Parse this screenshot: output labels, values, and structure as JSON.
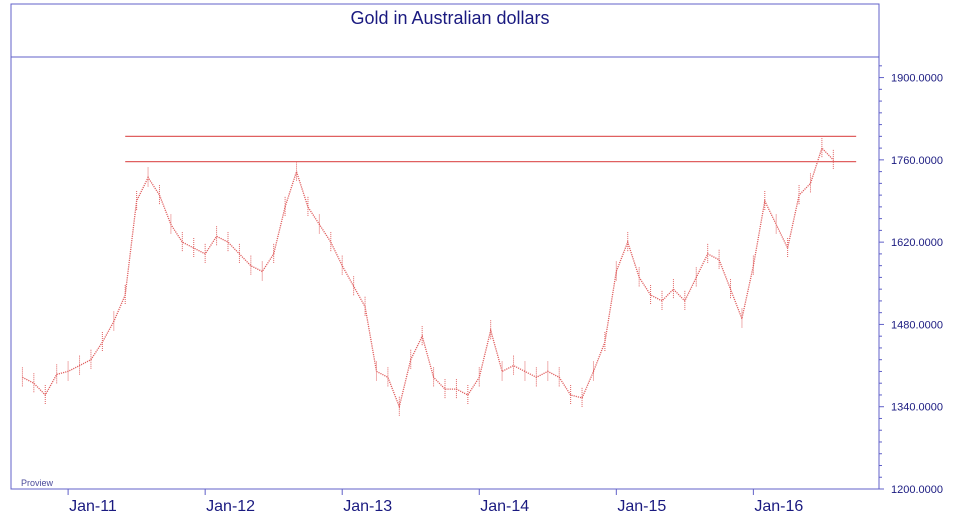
{
  "chart_data": {
    "type": "line",
    "title": "Gold in Australian dollars",
    "watermark": "Proview",
    "x_ticks": [
      "Jan-11",
      "Jan-12",
      "Jan-13",
      "Jan-14",
      "Jan-15",
      "Jan-16"
    ],
    "y_ticks": [
      "1900.0000",
      "1760.0000",
      "1620.0000",
      "1480.0000",
      "1340.0000",
      "1200.0000"
    ],
    "y_tick_values": [
      1900,
      1760,
      1620,
      1480,
      1340,
      1200
    ],
    "ylim": [
      1200,
      1935
    ],
    "xlim": [
      "2010-08",
      "2016-12"
    ],
    "grid": false,
    "resistance_lines": [
      1800,
      1757
    ],
    "series": [
      {
        "color": "#e06060",
        "x": [
          "2010-09",
          "2010-10",
          "2010-11",
          "2010-12",
          "2011-01",
          "2011-02",
          "2011-03",
          "2011-04",
          "2011-05",
          "2011-06",
          "2011-07",
          "2011-08",
          "2011-09",
          "2011-10",
          "2011-11",
          "2011-12",
          "2012-01",
          "2012-02",
          "2012-03",
          "2012-04",
          "2012-05",
          "2012-06",
          "2012-07",
          "2012-08",
          "2012-09",
          "2012-10",
          "2012-11",
          "2012-12",
          "2013-01",
          "2013-02",
          "2013-03",
          "2013-04",
          "2013-05",
          "2013-06",
          "2013-07",
          "2013-08",
          "2013-09",
          "2013-10",
          "2013-11",
          "2013-12",
          "2014-01",
          "2014-02",
          "2014-03",
          "2014-04",
          "2014-05",
          "2014-06",
          "2014-07",
          "2014-08",
          "2014-09",
          "2014-10",
          "2014-11",
          "2014-12",
          "2015-01",
          "2015-02",
          "2015-03",
          "2015-04",
          "2015-05",
          "2015-06",
          "2015-07",
          "2015-08",
          "2015-09",
          "2015-10",
          "2015-11",
          "2015-12",
          "2016-01",
          "2016-02",
          "2016-03",
          "2016-04",
          "2016-05",
          "2016-06",
          "2016-07",
          "2016-08"
        ],
        "values": [
          1390,
          1380,
          1360,
          1395,
          1400,
          1410,
          1420,
          1450,
          1485,
          1530,
          1690,
          1730,
          1700,
          1650,
          1620,
          1610,
          1600,
          1630,
          1620,
          1600,
          1580,
          1570,
          1600,
          1680,
          1740,
          1680,
          1650,
          1620,
          1580,
          1545,
          1510,
          1400,
          1390,
          1340,
          1420,
          1460,
          1390,
          1370,
          1370,
          1360,
          1390,
          1470,
          1400,
          1410,
          1400,
          1390,
          1400,
          1390,
          1360,
          1355,
          1400,
          1450,
          1570,
          1620,
          1560,
          1530,
          1520,
          1540,
          1520,
          1560,
          1600,
          1590,
          1540,
          1490,
          1580,
          1690,
          1650,
          1610,
          1700,
          1720,
          1780,
          1760
        ]
      }
    ]
  }
}
